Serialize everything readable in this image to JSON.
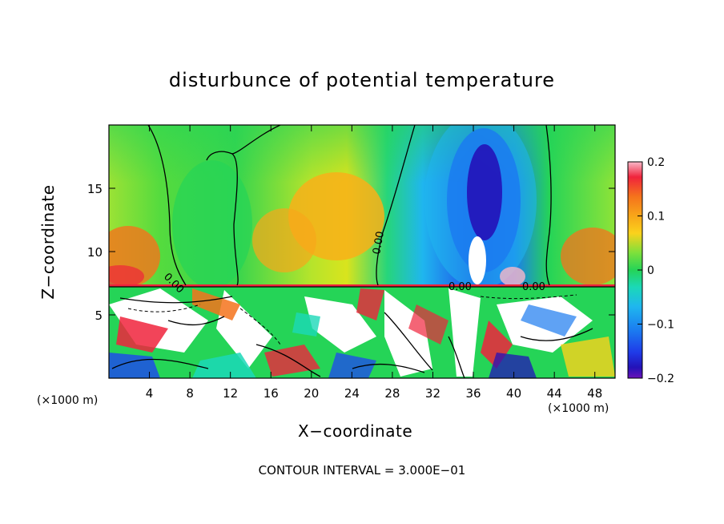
{
  "chart_data": {
    "type": "heatmap",
    "title": "disturbunce of potential temperature",
    "xlabel": "X−coordinate",
    "ylabel": "Z−coordinate",
    "x_unit_label": "(×1000 m)",
    "x_ticks": [
      4,
      8,
      12,
      16,
      20,
      24,
      28,
      32,
      36,
      40,
      44,
      48
    ],
    "y_ticks": [
      5,
      10,
      15
    ],
    "xlim": [
      0,
      50
    ],
    "ylim": [
      0,
      20
    ],
    "colorbar": {
      "range": [
        -0.2,
        0.2
      ],
      "ticks": [
        "0.2",
        "0.1",
        "0",
        "−0.1",
        "−0.2"
      ],
      "colors": [
        "#f9b8c8",
        "#f0233c",
        "#f5731c",
        "#f8a619",
        "#fbd21c",
        "#d8ea1f",
        "#7ee03b",
        "#25d457",
        "#1bd8b8",
        "#1fb6ef",
        "#1b7bf0",
        "#1f3be8",
        "#2312b8",
        "#6a12b8"
      ]
    },
    "contour_labels": [
      "0.00",
      "0.00",
      "0.00",
      "0.00"
    ],
    "contour_interval_text": "CONTOUR INTERVAL = 3.000E−01",
    "field_description_regions": [
      {
        "x": [
          0,
          6
        ],
        "z": [
          7.5,
          20
        ],
        "value": 0.02
      },
      {
        "x": [
          6,
          26
        ],
        "z": [
          7.5,
          20
        ],
        "value": 0.05
      },
      {
        "x": [
          26,
          43
        ],
        "z": [
          7.5,
          20
        ],
        "value": -0.15
      },
      {
        "x": [
          43,
          50
        ],
        "z": [
          7.5,
          20
        ],
        "value": 0.08
      },
      {
        "x": [
          0,
          50
        ],
        "z": [
          0,
          7.5
        ],
        "value": 0.0
      }
    ]
  }
}
